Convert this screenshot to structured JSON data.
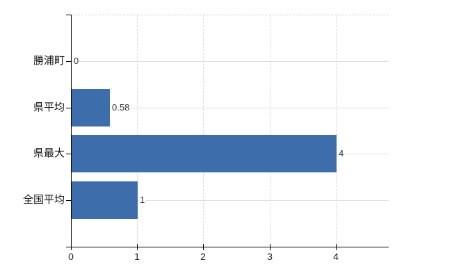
{
  "chart_data": {
    "type": "bar",
    "orientation": "horizontal",
    "title": "",
    "xlabel": "",
    "ylabel": "",
    "categories": [
      "勝浦町",
      "県平均",
      "県最大",
      "全国平均"
    ],
    "values": [
      0,
      0.58,
      4,
      1
    ],
    "value_labels": [
      "0",
      "0.58",
      "4",
      "1"
    ],
    "x_ticks": [
      0,
      1,
      2,
      3,
      4
    ],
    "x_tick_labels": [
      "0",
      "1",
      "2",
      "3",
      "4"
    ],
    "xlim": [
      0,
      4.79
    ],
    "grid": true,
    "legend": false,
    "colors": {
      "bar": "#3e6dab",
      "h_gridline": "#dce3dc",
      "v_gridline": "#d8d4de",
      "plot_top_border": "#d9cdd5",
      "axis": "#000000",
      "tick_label": "#222222",
      "category_label": "#111111",
      "value_label": "#333333",
      "background": "#ffffff"
    }
  }
}
